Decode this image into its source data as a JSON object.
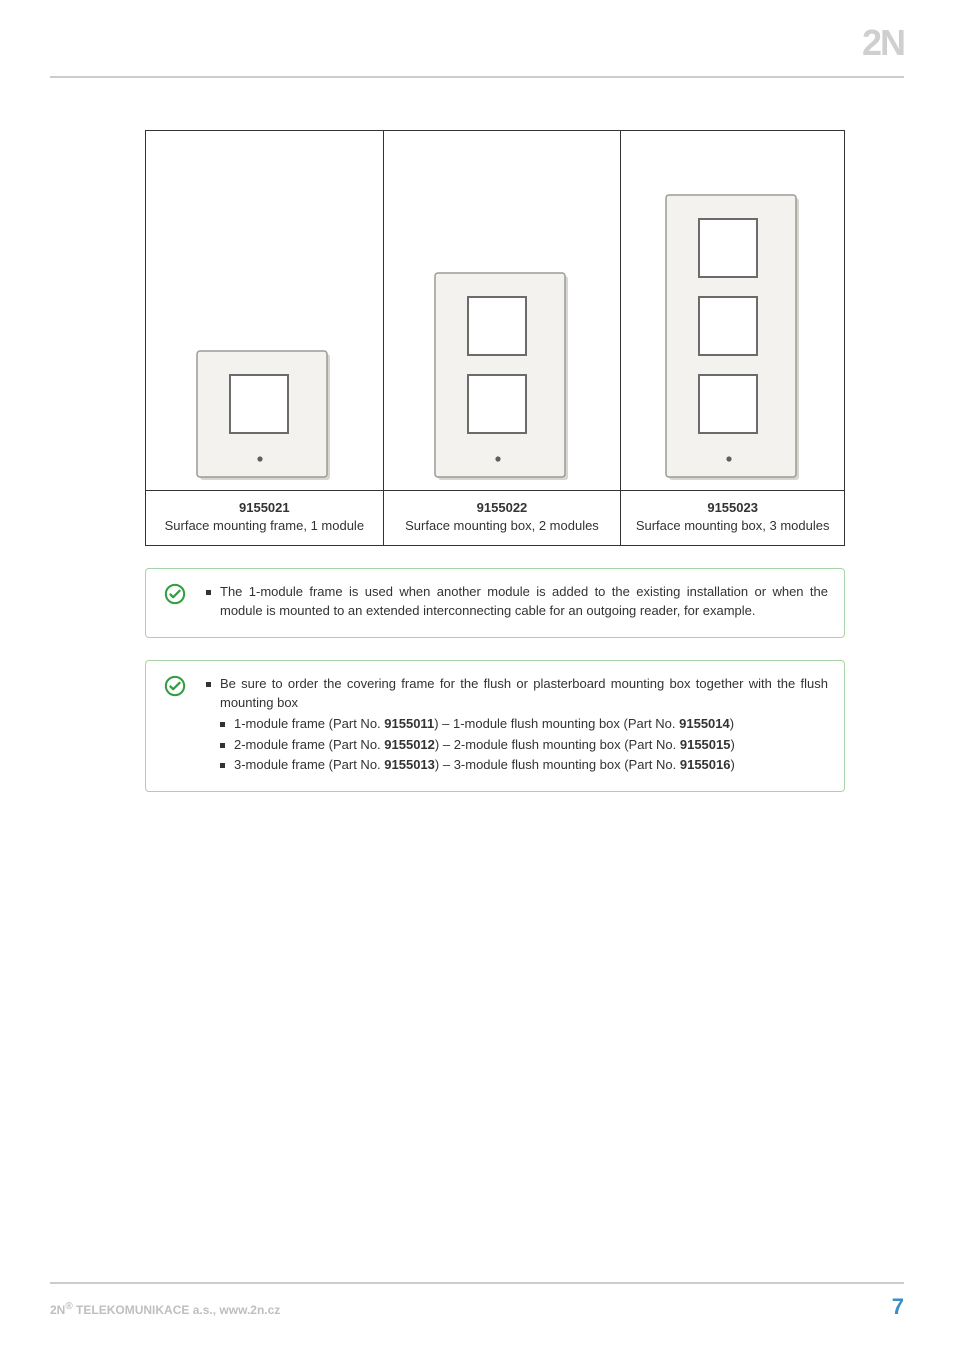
{
  "logo_text": "2N",
  "products": [
    {
      "code": "9155021",
      "desc": "Surface mounting frame, 1 module",
      "modules": 1,
      "width_col_pct": 34
    },
    {
      "code": "9155022",
      "desc": "Surface mounting box, 2 modules",
      "modules": 2,
      "width_col_pct": 34
    },
    {
      "code": "9155023",
      "desc": "Surface mounting box, 3 modules",
      "modules": 3,
      "width_col_pct": 32
    }
  ],
  "svg": {
    "frame_fill": "#f4f2ee",
    "frame_stroke": "#9a9a96",
    "hole_stroke": "#6b6b6b",
    "shadow": "#d9d6d0",
    "dot": "#5f5f5f"
  },
  "callout1": {
    "border": "#a9d3a9",
    "bg": "#ffffff",
    "icon": "#2e9e3f",
    "items": [
      "The 1-module frame is used when another module is added to the existing installation or when the module is mounted to an extended interconnecting cable for an outgoing reader, for example."
    ]
  },
  "callout2": {
    "border": "#a9d3a9",
    "bg": "#ffffff",
    "icon": "#2e9e3f",
    "lead": "Be sure to order the covering frame for the flush or plasterboard mounting box together with the flush mounting box",
    "subitems": [
      {
        "pre": "1-module frame (Part No. ",
        "b1": "9155011",
        "mid": ") – 1-module flush mounting box (Part No. ",
        "b2": "9155014",
        "post": ")"
      },
      {
        "pre": "2-module frame (Part No. ",
        "b1": "9155012",
        "mid": ") – 2-module flush mounting box (Part No. ",
        "b2": "9155015",
        "post": ")"
      },
      {
        "pre": "3-module frame (Part No. ",
        "b1": "9155013",
        "mid": ") – 3-module flush mounting box (Part No. ",
        "b2": "9155016",
        "post": ")"
      }
    ]
  },
  "footer": {
    "left_pre": "2N",
    "left_sup": "®",
    "left_post": " TELEKOMUNIKACE a.s., www.2n.cz",
    "page": "7",
    "page_color": "#3b8fc4",
    "left_color": "#bfbfbf"
  }
}
